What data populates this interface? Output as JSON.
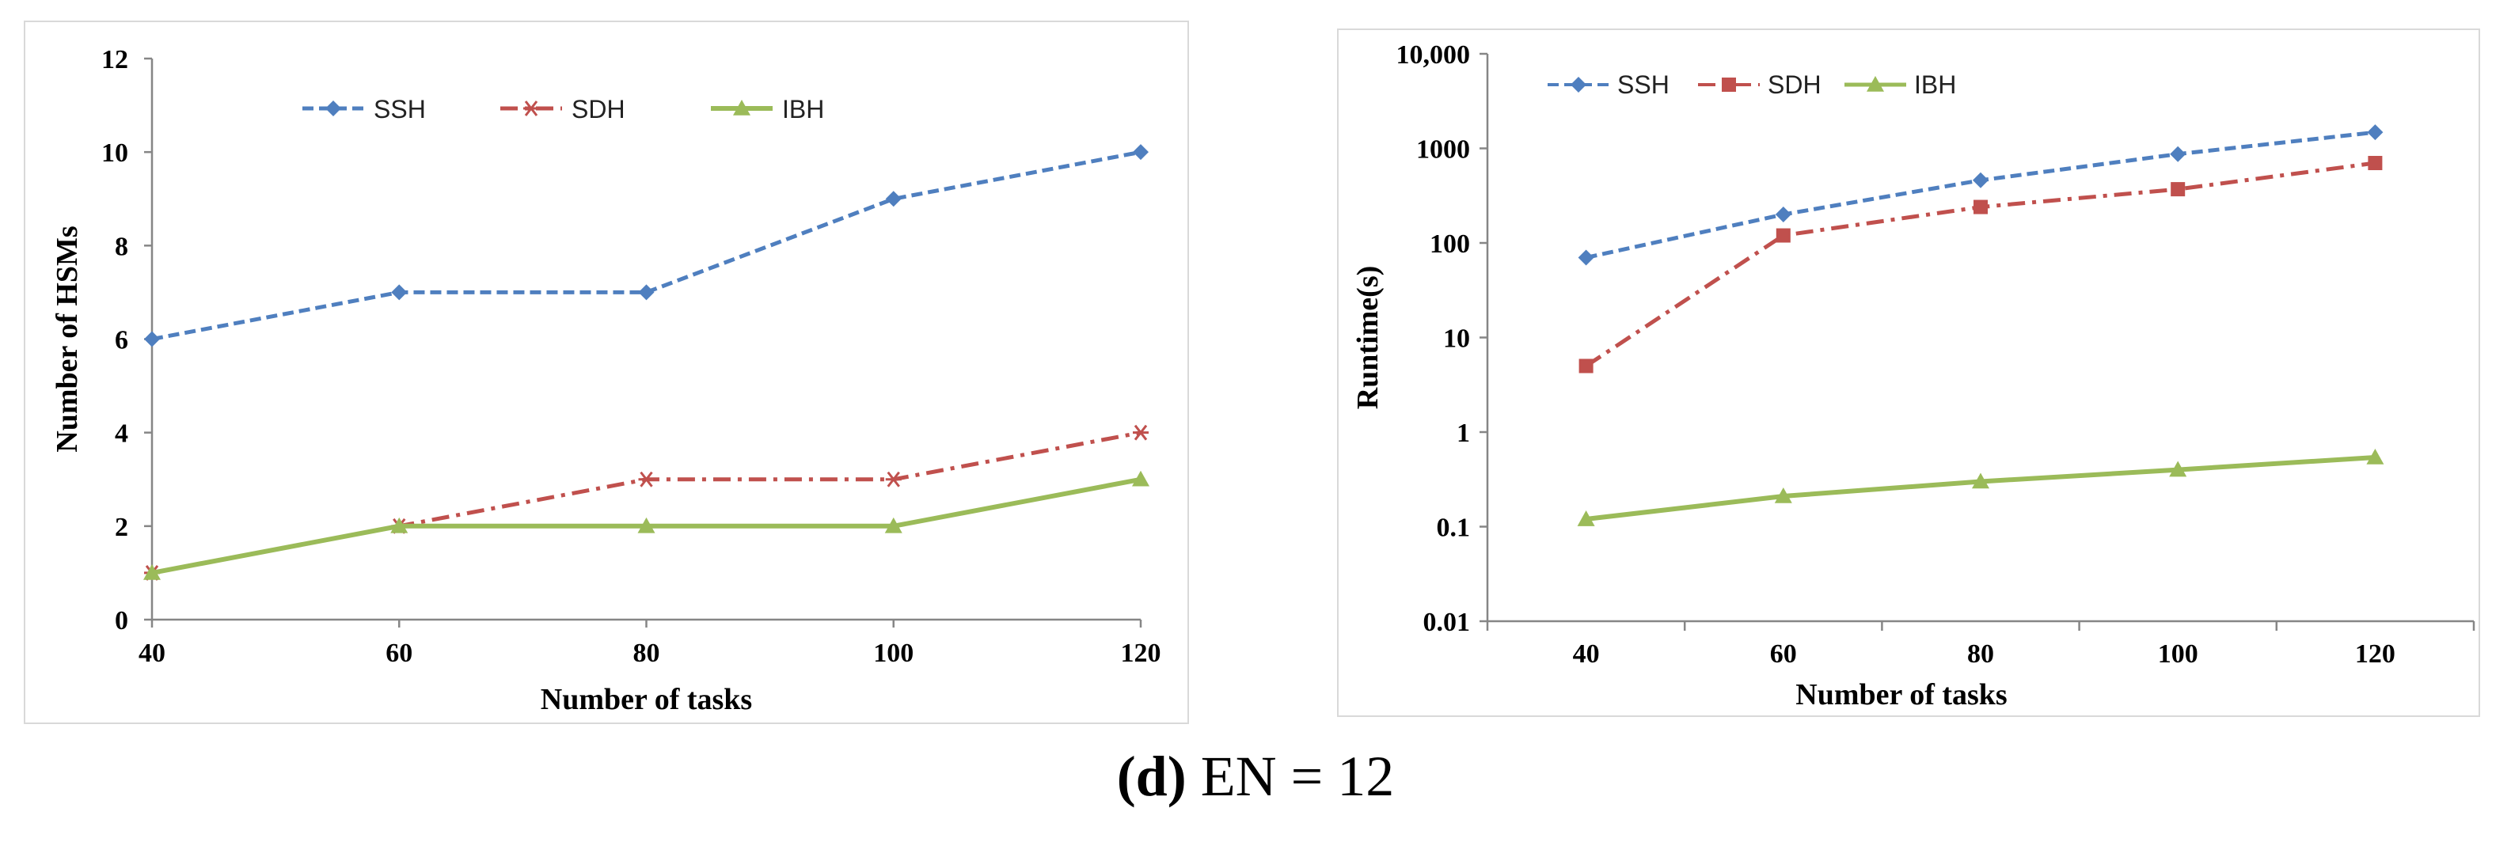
{
  "caption": {
    "letter": "(d)",
    "text": "EN = 12"
  },
  "colors": {
    "SSH": "#4f7fbf",
    "SDH": "#c0504d",
    "IBH": "#9bbb59"
  },
  "chart_data": [
    {
      "type": "line",
      "title": "",
      "xlabel": "Number of tasks",
      "ylabel": "Number of HSMs",
      "x": [
        40,
        60,
        80,
        100,
        120
      ],
      "xlim": [
        40,
        120
      ],
      "ylim": [
        0,
        12
      ],
      "yticks": [
        0,
        2,
        4,
        6,
        8,
        10,
        12
      ],
      "yscale": "linear",
      "legend_position": "top",
      "series": [
        {
          "name": "SSH",
          "values": [
            6,
            7,
            7,
            9,
            10
          ],
          "marker": "diamond",
          "line": "dashed"
        },
        {
          "name": "SDH",
          "values": [
            1,
            2,
            3,
            3,
            4
          ],
          "marker": "asterisk",
          "line": "dash-dot"
        },
        {
          "name": "IBH",
          "values": [
            1,
            2,
            2,
            2,
            3
          ],
          "marker": "triangle",
          "line": "solid"
        }
      ]
    },
    {
      "type": "line",
      "title": "",
      "xlabel": "Number of tasks",
      "ylabel": "Runtime(s)",
      "x": [
        40,
        60,
        80,
        100,
        120
      ],
      "yscale": "log",
      "ylim": [
        0.01,
        10000
      ],
      "yticks": [
        0.01,
        0.1,
        1,
        10,
        100,
        1000,
        10000
      ],
      "ytick_labels": [
        "0.01",
        "0.1",
        "1",
        "10",
        "100",
        "1000",
        "10,000"
      ],
      "legend_position": "top-left",
      "series": [
        {
          "name": "SSH",
          "values": [
            70,
            200,
            460,
            870,
            1480
          ],
          "marker": "diamond",
          "line": "dashed"
        },
        {
          "name": "SDH",
          "values": [
            5,
            120,
            240,
            370,
            700
          ],
          "marker": "square",
          "line": "dash-dot"
        },
        {
          "name": "IBH",
          "values": [
            0.12,
            0.21,
            0.3,
            0.4,
            0.54
          ],
          "marker": "triangle",
          "line": "solid"
        }
      ]
    }
  ]
}
